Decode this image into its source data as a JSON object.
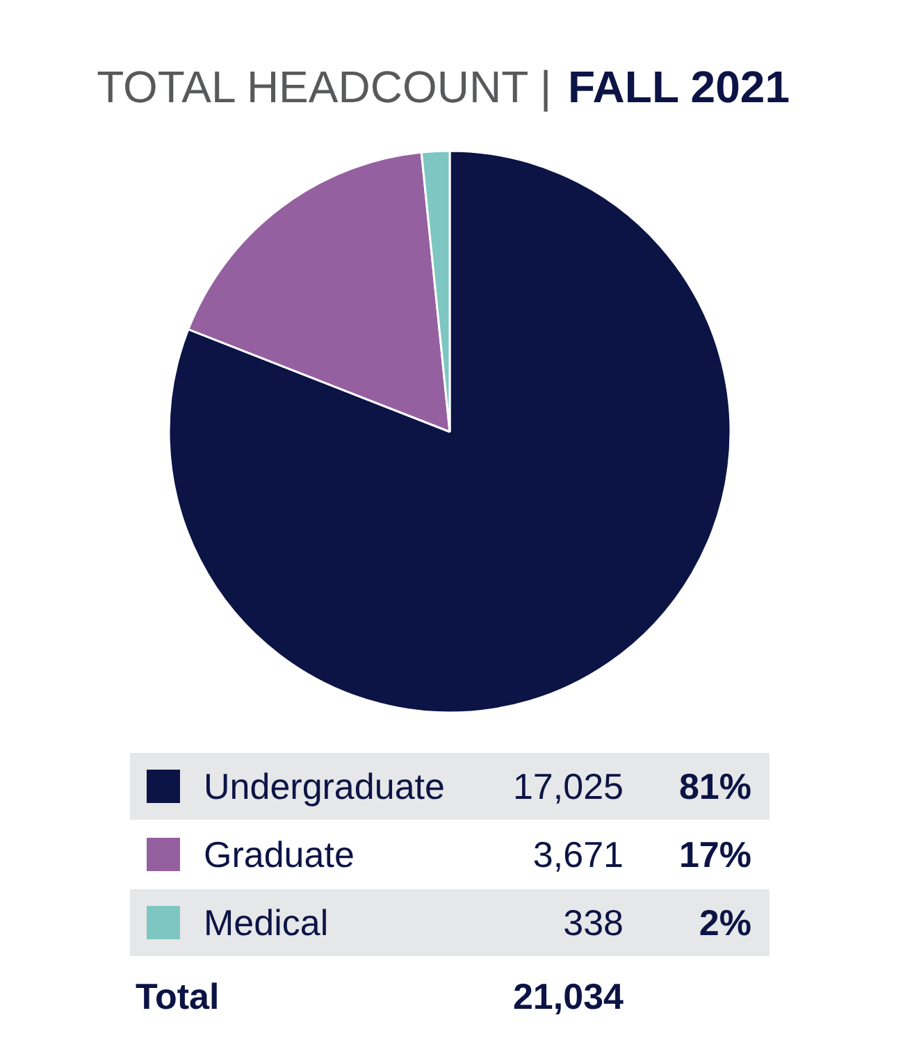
{
  "chart_data": {
    "type": "pie",
    "title": "TOTAL HEADCOUNT |",
    "subtitle": "FALL 2021",
    "categories": [
      "Undergraduate",
      "Graduate",
      "Medical"
    ],
    "values": [
      17025,
      3671,
      338
    ],
    "colors": [
      "#0c1445",
      "#9560a0",
      "#7dc6c1"
    ],
    "value_labels": [
      "17,025",
      "3,671",
      "338"
    ],
    "annotations": [
      "81%",
      "17%",
      "2%",
      "Total",
      "21,034"
    ],
    "legend": "bottom"
  }
}
